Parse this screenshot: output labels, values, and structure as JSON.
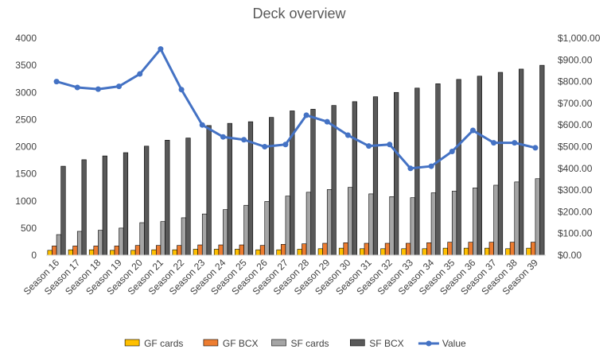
{
  "chart_data": {
    "type": "bar",
    "title": "Deck overview",
    "categories": [
      "Season 16",
      "Season 17",
      "Season 18",
      "Season 19",
      "Season 20",
      "Season 21",
      "Season 22",
      "Season 23",
      "Season 24",
      "Season 25",
      "Season 26",
      "Season 27",
      "Season 28",
      "Season 29",
      "Season 30",
      "Season 31",
      "Season 32",
      "Season 33",
      "Season 34",
      "Season 35",
      "Season 36",
      "Season 37",
      "Season 38",
      "Season 39"
    ],
    "y_left": {
      "min": 0,
      "max": 4000,
      "step": 500
    },
    "y_right": {
      "min": 0,
      "max": 1000,
      "step": 100,
      "format": "currency"
    },
    "series": [
      {
        "name": "GF cards",
        "type": "bar",
        "axis": "left",
        "color": "#FFC000",
        "values": [
          90,
          100,
          100,
          90,
          90,
          100,
          100,
          110,
          110,
          110,
          100,
          100,
          110,
          120,
          130,
          120,
          120,
          120,
          120,
          130,
          130,
          130,
          120,
          130
        ]
      },
      {
        "name": "GF BCX",
        "type": "bar",
        "axis": "left",
        "color": "#ED7D31",
        "values": [
          170,
          170,
          170,
          170,
          180,
          180,
          180,
          190,
          190,
          190,
          180,
          200,
          210,
          220,
          230,
          220,
          220,
          220,
          230,
          240,
          240,
          240,
          240,
          240
        ]
      },
      {
        "name": "SF cards",
        "type": "bar",
        "axis": "left",
        "color": "#A5A5A5",
        "values": [
          380,
          440,
          460,
          500,
          600,
          620,
          690,
          760,
          840,
          920,
          990,
          1090,
          1160,
          1210,
          1250,
          1130,
          1080,
          1060,
          1150,
          1180,
          1240,
          1290,
          1350,
          1410
        ]
      },
      {
        "name": "SF BCX",
        "type": "bar",
        "axis": "left",
        "color": "#595959",
        "values": [
          1640,
          1760,
          1830,
          1890,
          2010,
          2120,
          2160,
          2390,
          2430,
          2460,
          2540,
          2660,
          2690,
          2760,
          2830,
          2920,
          3000,
          3080,
          3160,
          3240,
          3300,
          3370,
          3430,
          3500
        ]
      },
      {
        "name": "Value",
        "type": "line",
        "axis": "right",
        "color": "#4472C4",
        "values": [
          800,
          773,
          765,
          778,
          835,
          950,
          763,
          600,
          545,
          532,
          500,
          510,
          645,
          615,
          553,
          503,
          510,
          400,
          410,
          478,
          575,
          518,
          518,
          495
        ]
      }
    ],
    "legend": "bottom",
    "grid": false
  }
}
